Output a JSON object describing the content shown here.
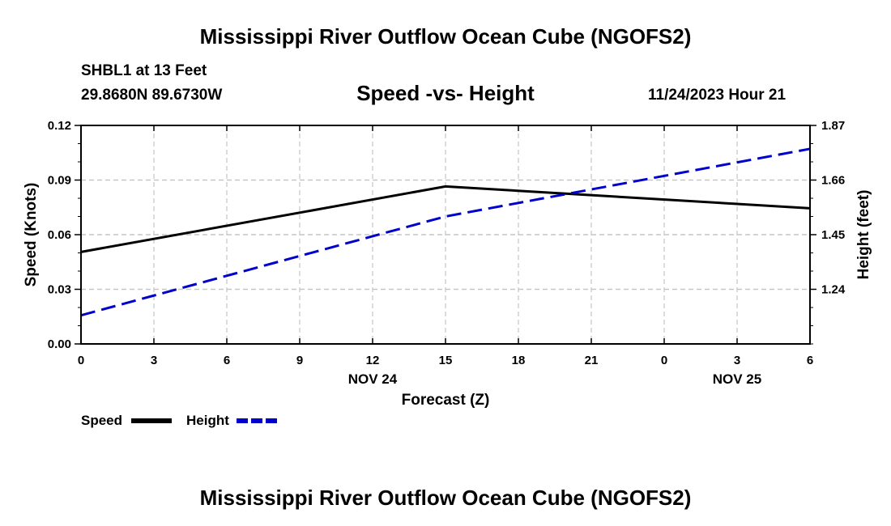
{
  "title": "Mississippi River Outflow Ocean Cube (NGOFS2)",
  "footer_title": "Mississippi River Outflow Ocean Cube (NGOFS2)",
  "station": "SHBL1 at 13 Feet",
  "coords": "29.8680N  89.6730W",
  "chart_heading": "Speed -vs- Height",
  "datetime": "11/24/2023 Hour 21",
  "chart_data": {
    "type": "line",
    "title": "Speed -vs- Height",
    "xlabel": "Forecast (Z)",
    "ylabel": "Speed (Knots)",
    "y2label": "Height (feet)",
    "x": [
      0,
      3,
      6,
      9,
      12,
      15,
      18,
      21,
      24,
      27,
      30
    ],
    "x_tick_labels": [
      "0",
      "3",
      "6",
      "9",
      "12",
      "15",
      "18",
      "21",
      "0",
      "3",
      "6"
    ],
    "date_labels": [
      {
        "x": 12,
        "label": "NOV 24"
      },
      {
        "x": 27,
        "label": "NOV 25"
      }
    ],
    "xlim": [
      0,
      30
    ],
    "ylim": [
      0,
      0.12
    ],
    "y_ticks": [
      "0.00",
      "0.03",
      "0.06",
      "0.09",
      "0.12"
    ],
    "y2lim": [
      1.03,
      1.87
    ],
    "y2_ticks": [
      "1.24",
      "1.45",
      "1.66",
      "1.87"
    ],
    "grid": true,
    "legend": "bottom-left",
    "series": [
      {
        "name": "Speed",
        "axis": "left",
        "color": "#000000",
        "dash": "solid",
        "points": [
          [
            0,
            0.0505
          ],
          [
            15,
            0.0865
          ],
          [
            30,
            0.0745
          ]
        ]
      },
      {
        "name": "Height",
        "axis": "right",
        "color": "#0000cc",
        "dash": "dashed",
        "points": [
          [
            0,
            1.14
          ],
          [
            15,
            1.52
          ],
          [
            30,
            1.78
          ]
        ]
      }
    ]
  }
}
